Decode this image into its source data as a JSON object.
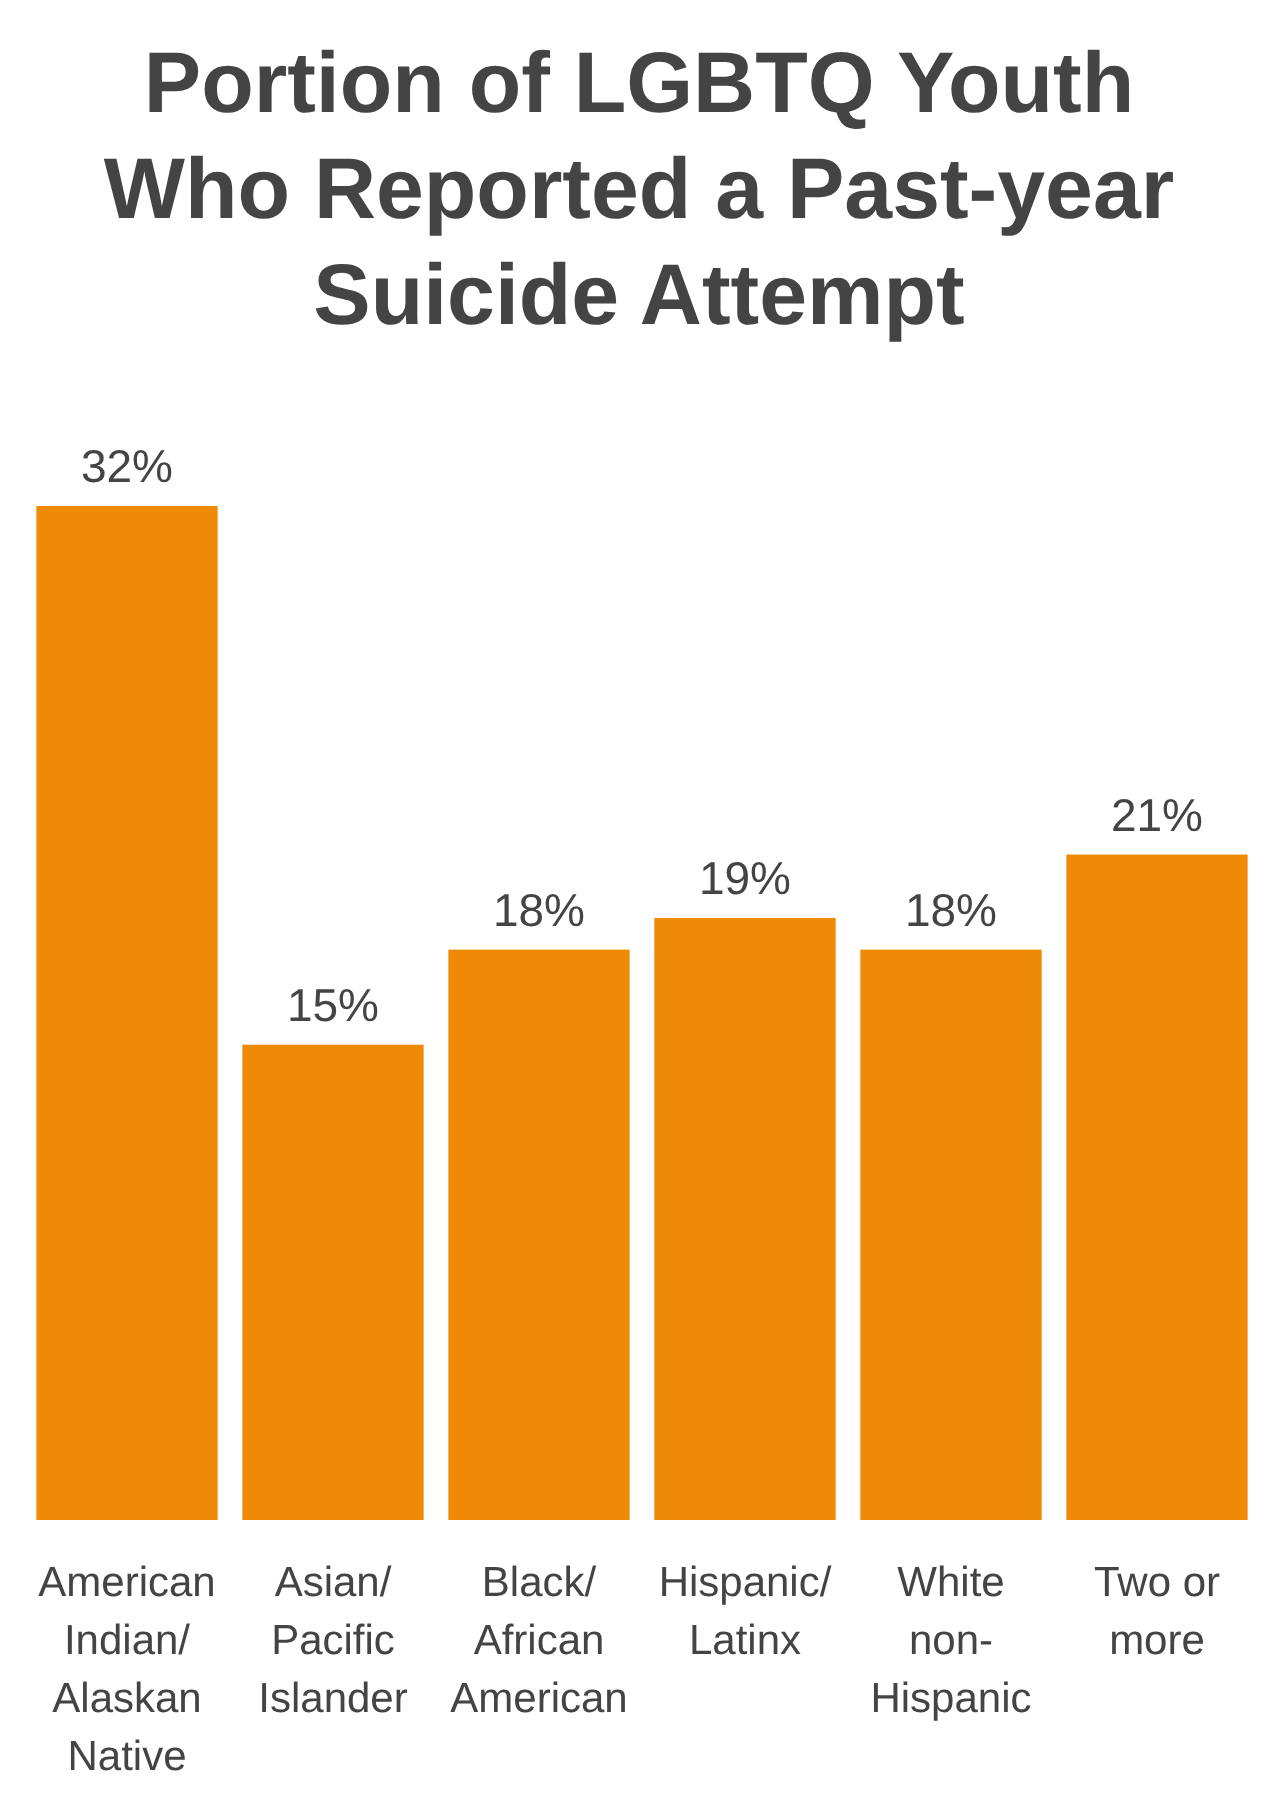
{
  "chart_data": {
    "type": "bar",
    "title": "Portion of LGBTQ Youth\nWho Reported a Past-year\nSuicide Attempt",
    "categories": [
      "American\nIndian/\nAlaskan\nNative",
      "Asian/\nPacific\nIslander",
      "Black/\nAfrican\nAmerican",
      "Hispanic/\nLatinx",
      "White\nnon-\nHispanic",
      "Two or\nmore"
    ],
    "values": [
      32,
      15,
      18,
      19,
      18,
      21
    ],
    "color": "#ef8a06",
    "data_labels": true,
    "value_labels": [
      "32%",
      "15%",
      "18%",
      "19%",
      "18%",
      "21%"
    ]
  }
}
